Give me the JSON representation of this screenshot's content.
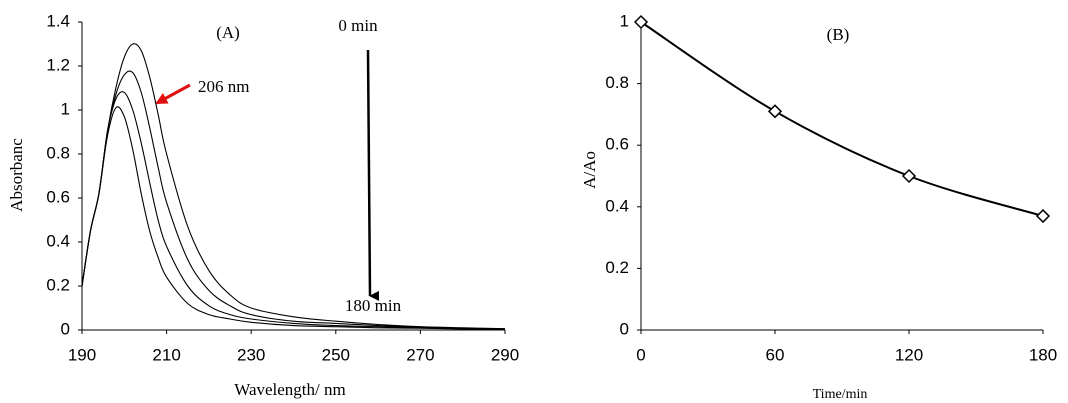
{
  "chart_data": [
    {
      "type": "line",
      "title": "(A)",
      "x_label": "Wavelength/ nm",
      "y_label": "Absorbanc",
      "annotations": [
        "0 min",
        "180 min",
        "206 nm"
      ],
      "x": [
        190,
        192,
        194,
        196,
        198,
        200,
        202,
        204,
        206,
        208,
        210,
        215,
        220,
        225,
        230,
        240,
        250,
        260,
        270,
        280,
        290
      ],
      "series": [
        {
          "color": "#000000",
          "values": [
            0.2,
            0.45,
            0.62,
            0.9,
            1.1,
            1.24,
            1.3,
            1.27,
            1.15,
            0.98,
            0.8,
            0.47,
            0.27,
            0.16,
            0.1,
            0.06,
            0.04,
            0.025,
            0.015,
            0.01,
            0.006
          ]
        },
        {
          "color": "#000000",
          "values": [
            0.2,
            0.45,
            0.62,
            0.9,
            1.07,
            1.16,
            1.17,
            1.08,
            0.92,
            0.74,
            0.58,
            0.32,
            0.18,
            0.11,
            0.07,
            0.04,
            0.03,
            0.02,
            0.012,
            0.008,
            0.005
          ]
        },
        {
          "color": "#000000",
          "values": [
            0.2,
            0.45,
            0.62,
            0.9,
            1.05,
            1.08,
            1.0,
            0.85,
            0.67,
            0.5,
            0.38,
            0.2,
            0.11,
            0.07,
            0.05,
            0.03,
            0.02,
            0.015,
            0.01,
            0.006,
            0.004
          ]
        },
        {
          "color": "#000000",
          "values": [
            0.2,
            0.45,
            0.62,
            0.88,
            1.01,
            0.97,
            0.82,
            0.62,
            0.45,
            0.33,
            0.24,
            0.12,
            0.07,
            0.05,
            0.035,
            0.02,
            0.015,
            0.01,
            0.008,
            0.005,
            0.003
          ]
        }
      ],
      "xlim": [
        190,
        290
      ],
      "xticks": [
        190,
        210,
        230,
        250,
        270,
        290
      ],
      "ylim": [
        0,
        1.4
      ],
      "yticks": [
        0,
        0.2,
        0.4,
        0.6,
        0.8,
        1,
        1.2,
        1.4
      ]
    },
    {
      "type": "line",
      "title": "(B)",
      "x_label": "Time/min",
      "y_label": "A/Ao",
      "marker": "diamond",
      "x": [
        0,
        60,
        120,
        180
      ],
      "series": [
        {
          "color": "#000000",
          "values": [
            1,
            0.71,
            0.5,
            0.37
          ]
        }
      ],
      "xlim": [
        0,
        180
      ],
      "xticks": [
        0,
        60,
        120,
        180
      ],
      "ylim": [
        0,
        1
      ],
      "yticks": [
        0,
        0.2,
        0.4,
        0.6,
        0.8,
        1
      ]
    }
  ]
}
